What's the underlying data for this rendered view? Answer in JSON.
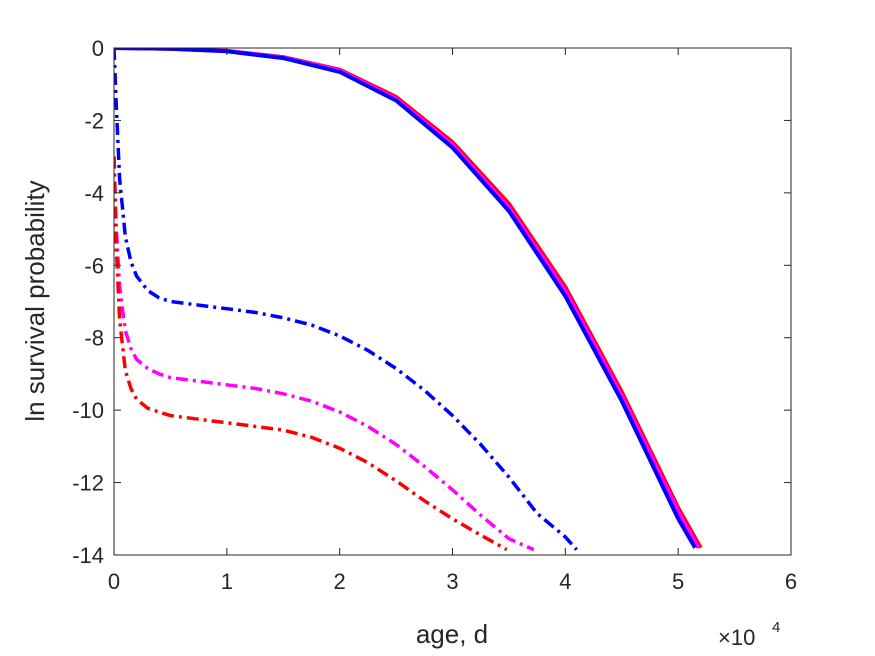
{
  "chart_data": {
    "type": "line",
    "xlabel": "age, d",
    "ylabel": "ln survival probability",
    "x_exponent_label": {
      "base": "×10",
      "power": "4"
    },
    "xlim": [
      0,
      60000
    ],
    "ylim": [
      -14,
      0
    ],
    "x_tick_values": [
      0,
      10000,
      20000,
      30000,
      40000,
      50000,
      60000
    ],
    "x_tick_labels": [
      "0",
      "1",
      "2",
      "3",
      "4",
      "5",
      "6"
    ],
    "y_tick_values": [
      0,
      -2,
      -4,
      -6,
      -8,
      -10,
      -12,
      -14
    ],
    "y_tick_labels": [
      "0",
      "-2",
      "-4",
      "-6",
      "-8",
      "-10",
      "-12",
      "-14"
    ],
    "grid": false,
    "box": true,
    "series": [
      {
        "color": "#ff0000",
        "style": "solid",
        "x": [
          0,
          5000,
          10000,
          15000,
          20000,
          25000,
          30000,
          35000,
          40000,
          45000,
          50000,
          52000
        ],
        "y": [
          0,
          -0.02,
          -0.08,
          -0.25,
          -0.6,
          -1.35,
          -2.6,
          -4.3,
          -6.6,
          -9.5,
          -12.7,
          -13.8
        ]
      },
      {
        "color": "#ff00ff",
        "style": "solid",
        "x": [
          0,
          5000,
          10000,
          15000,
          20000,
          25000,
          30000,
          35000,
          40000,
          45000,
          50000,
          51800
        ],
        "y": [
          0,
          -0.02,
          -0.08,
          -0.26,
          -0.62,
          -1.4,
          -2.67,
          -4.4,
          -6.7,
          -9.6,
          -12.8,
          -13.8
        ]
      },
      {
        "color": "#0000ff",
        "style": "solid",
        "x": [
          0,
          5000,
          10000,
          15000,
          20000,
          25000,
          30000,
          35000,
          40000,
          45000,
          50000,
          51500
        ],
        "y": [
          0,
          -0.02,
          -0.09,
          -0.28,
          -0.66,
          -1.45,
          -2.75,
          -4.5,
          -6.85,
          -9.75,
          -13.0,
          -13.8
        ]
      },
      {
        "color": "#0000ff",
        "style": "dashdot",
        "x": [
          0,
          200,
          500,
          1000,
          1500,
          2000,
          3000,
          4000,
          5000,
          7500,
          10000,
          12500,
          15000,
          17500,
          20000,
          22500,
          25000,
          27500,
          30000,
          32500,
          35000,
          37500,
          40000,
          41000
        ],
        "y": [
          0,
          -1.6,
          -3.6,
          -5.2,
          -5.9,
          -6.3,
          -6.7,
          -6.9,
          -7.0,
          -7.1,
          -7.2,
          -7.3,
          -7.45,
          -7.65,
          -7.95,
          -8.35,
          -8.85,
          -9.45,
          -10.15,
          -10.95,
          -11.85,
          -12.85,
          -13.5,
          -13.85
        ]
      },
      {
        "color": "#ff00ff",
        "style": "dashdot",
        "x": [
          0,
          200,
          500,
          1000,
          1500,
          2000,
          3000,
          4000,
          5000,
          7500,
          10000,
          12500,
          15000,
          17500,
          20000,
          22500,
          25000,
          27500,
          30000,
          32500,
          35000,
          37200
        ],
        "y": [
          -3.0,
          -5.0,
          -6.6,
          -7.8,
          -8.3,
          -8.6,
          -8.85,
          -9.0,
          -9.1,
          -9.2,
          -9.3,
          -9.4,
          -9.55,
          -9.75,
          -10.05,
          -10.45,
          -10.95,
          -11.55,
          -12.2,
          -12.9,
          -13.55,
          -13.85
        ]
      },
      {
        "color": "#ff0000",
        "style": "dashdot",
        "x": [
          0,
          200,
          500,
          1000,
          1500,
          2000,
          3000,
          4000,
          5000,
          7500,
          10000,
          12500,
          15000,
          17500,
          20000,
          22500,
          25000,
          27500,
          30000,
          32500,
          34800
        ],
        "y": [
          -3.0,
          -5.5,
          -7.5,
          -8.9,
          -9.4,
          -9.7,
          -9.95,
          -10.05,
          -10.15,
          -10.25,
          -10.35,
          -10.45,
          -10.55,
          -10.75,
          -11.05,
          -11.45,
          -11.95,
          -12.5,
          -13.0,
          -13.45,
          -13.85
        ]
      }
    ]
  }
}
